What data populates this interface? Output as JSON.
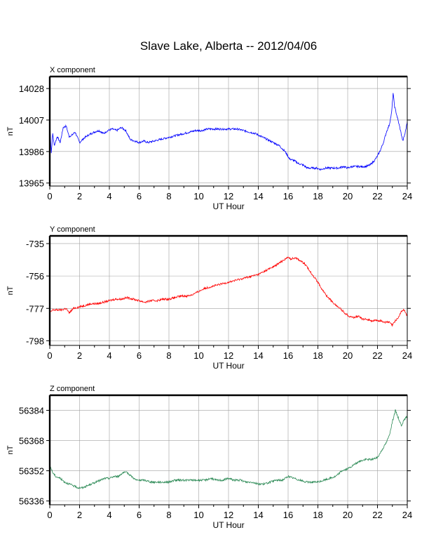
{
  "title": "Slave Lake, Alberta -- 2012/04/06",
  "chart_data": [
    {
      "type": "line",
      "panel_label": "X component",
      "xlabel": "UT Hour",
      "ylabel": "nT",
      "xlim": [
        0,
        24
      ],
      "xticks": [
        0,
        2,
        4,
        6,
        8,
        10,
        12,
        14,
        16,
        18,
        20,
        22,
        24
      ],
      "ylim": [
        13963,
        14036
      ],
      "yticks": [
        13965,
        13986,
        14007,
        14028
      ],
      "grid": true,
      "color": "#0000ff",
      "series": [
        {
          "x": [
            0,
            0.1,
            0.2,
            0.3,
            0.5,
            0.7,
            0.9,
            1.1,
            1.3,
            1.5,
            1.7,
            2.0,
            2.3,
            2.6,
            3.0,
            3.3,
            3.6,
            3.9,
            4.2,
            4.5,
            4.8,
            5.1,
            5.4,
            5.7,
            6.0,
            6.3,
            6.6,
            7.0,
            7.4,
            7.8,
            8.2,
            8.6,
            9.0,
            9.4,
            9.8,
            10.2,
            10.6,
            11.0,
            11.4,
            11.8,
            12.2,
            12.6,
            13.0,
            13.4,
            13.8,
            14.2,
            14.6,
            15.0,
            15.4,
            15.8,
            16.1,
            16.4,
            16.7,
            17.0,
            17.3,
            17.6,
            17.9,
            18.2,
            18.5,
            18.8,
            19.1,
            19.4,
            19.7,
            20.0,
            20.3,
            20.6,
            20.9,
            21.2,
            21.5,
            21.8,
            22.0,
            22.2,
            22.4,
            22.6,
            22.8,
            22.95,
            23.05,
            23.15,
            23.3,
            23.5,
            23.7,
            23.85,
            24.0
          ],
          "y": [
            14005,
            13985,
            13998,
            13990,
            13996,
            13992,
            14002,
            14003,
            13996,
            13997,
            13999,
            13992,
            13995,
            13997,
            13999,
            14000,
            13998,
            14000,
            14001,
            14000,
            14002,
            14000,
            13994,
            13993,
            13992,
            13993,
            13992,
            13993,
            13994,
            13995,
            13996,
            13997,
            13998,
            13999,
            14000,
            14000,
            14001,
            14001,
            14001,
            14001,
            14001,
            14001,
            14000,
            13999,
            13998,
            13996,
            13994,
            13992,
            13990,
            13986,
            13981,
            13980,
            13978,
            13977,
            13975,
            13975,
            13975,
            13974,
            13975,
            13975,
            13975,
            13975,
            13976,
            13975,
            13976,
            13976,
            13976,
            13976,
            13977,
            13980,
            13983,
            13987,
            13992,
            13999,
            14004,
            14012,
            14025,
            14016,
            14010,
            14002,
            13993,
            13998,
            14006
          ]
        }
      ]
    },
    {
      "type": "line",
      "panel_label": "Y component",
      "xlabel": "UT Hour",
      "ylabel": "nT",
      "xlim": [
        0,
        24
      ],
      "xticks": [
        0,
        2,
        4,
        6,
        8,
        10,
        12,
        14,
        16,
        18,
        20,
        22,
        24
      ],
      "ylim": [
        -801,
        -730
      ],
      "yticks": [
        -798,
        -777,
        -756,
        -735
      ],
      "grid": true,
      "color": "#ff0000",
      "series": [
        {
          "x": [
            0,
            0.2,
            0.5,
            0.8,
            1.1,
            1.3,
            1.6,
            2.0,
            2.4,
            2.8,
            3.2,
            3.6,
            4.0,
            4.4,
            4.8,
            5.2,
            5.6,
            6.0,
            6.4,
            6.8,
            7.2,
            7.6,
            8.0,
            8.4,
            8.8,
            9.2,
            9.6,
            10.0,
            10.4,
            10.8,
            11.2,
            11.6,
            12.0,
            12.4,
            12.8,
            13.2,
            13.6,
            14.0,
            14.4,
            14.8,
            15.2,
            15.5,
            15.8,
            16.0,
            16.2,
            16.5,
            16.8,
            17.1,
            17.4,
            17.7,
            18.0,
            18.3,
            18.6,
            18.9,
            19.2,
            19.5,
            19.8,
            20.1,
            20.4,
            20.7,
            21.0,
            21.3,
            21.6,
            21.9,
            22.2,
            22.5,
            22.8,
            23.0,
            23.2,
            23.4,
            23.6,
            23.8,
            24.0
          ],
          "y": [
            -780,
            -778,
            -778,
            -778,
            -777,
            -780,
            -777,
            -776,
            -775,
            -774,
            -774,
            -773,
            -772,
            -771,
            -771,
            -770,
            -771,
            -772,
            -773,
            -772,
            -772,
            -771,
            -771,
            -770,
            -769,
            -769,
            -768,
            -766,
            -764,
            -763,
            -762,
            -761,
            -760,
            -759,
            -758,
            -757,
            -756,
            -755,
            -753,
            -751,
            -749,
            -747,
            -745,
            -744,
            -745,
            -744,
            -746,
            -748,
            -752,
            -756,
            -760,
            -765,
            -769,
            -772,
            -775,
            -777,
            -780,
            -782,
            -783,
            -782,
            -784,
            -784,
            -785,
            -785,
            -785,
            -786,
            -786,
            -788,
            -785,
            -783,
            -779,
            -778,
            -782
          ]
        }
      ]
    },
    {
      "type": "line",
      "panel_label": "Z component",
      "xlabel": "UT Hour",
      "ylabel": "nT",
      "xlim": [
        0,
        24
      ],
      "xticks": [
        0,
        2,
        4,
        6,
        8,
        10,
        12,
        14,
        16,
        18,
        20,
        22,
        24
      ],
      "ylim": [
        56334,
        56392
      ],
      "yticks": [
        56336,
        56352,
        56368,
        56384
      ],
      "grid": true,
      "color": "#2e8b57",
      "series": [
        {
          "x": [
            0,
            0.2,
            0.4,
            0.7,
            1.0,
            1.3,
            1.6,
            1.9,
            2.2,
            2.5,
            2.8,
            3.1,
            3.4,
            3.7,
            4.0,
            4.3,
            4.6,
            4.9,
            5.2,
            5.5,
            5.8,
            6.1,
            6.4,
            6.8,
            7.2,
            7.6,
            8.0,
            8.4,
            8.8,
            9.2,
            9.6,
            10.0,
            10.4,
            10.8,
            11.2,
            11.6,
            12.0,
            12.4,
            12.8,
            13.2,
            13.6,
            14.0,
            14.4,
            14.8,
            15.2,
            15.6,
            16.0,
            16.4,
            16.8,
            17.2,
            17.6,
            18.0,
            18.4,
            18.8,
            19.2,
            19.6,
            20.0,
            20.4,
            20.8,
            21.2,
            21.6,
            22.0,
            22.3,
            22.6,
            22.8,
            23.0,
            23.2,
            23.4,
            23.6,
            23.8,
            24.0
          ],
          "y": [
            56355,
            56351,
            56349,
            56348,
            56346,
            56345,
            56344,
            56343,
            56343,
            56344,
            56345,
            56346,
            56347,
            56348,
            56348,
            56349,
            56349,
            56351,
            56351,
            56349,
            56347,
            56347,
            56347,
            56346,
            56346,
            56346,
            56346,
            56347,
            56347,
            56347,
            56347,
            56347,
            56347,
            56348,
            56347,
            56347,
            56348,
            56347,
            56347,
            56346,
            56346,
            56345,
            56345,
            56346,
            56347,
            56347,
            56349,
            56348,
            56347,
            56346,
            56346,
            56346,
            56347,
            56348,
            56349,
            56352,
            56353,
            56355,
            56357,
            56358,
            56358,
            56359,
            56363,
            56367,
            56371,
            56378,
            56384,
            56380,
            56376,
            56379,
            56381
          ]
        }
      ]
    }
  ]
}
